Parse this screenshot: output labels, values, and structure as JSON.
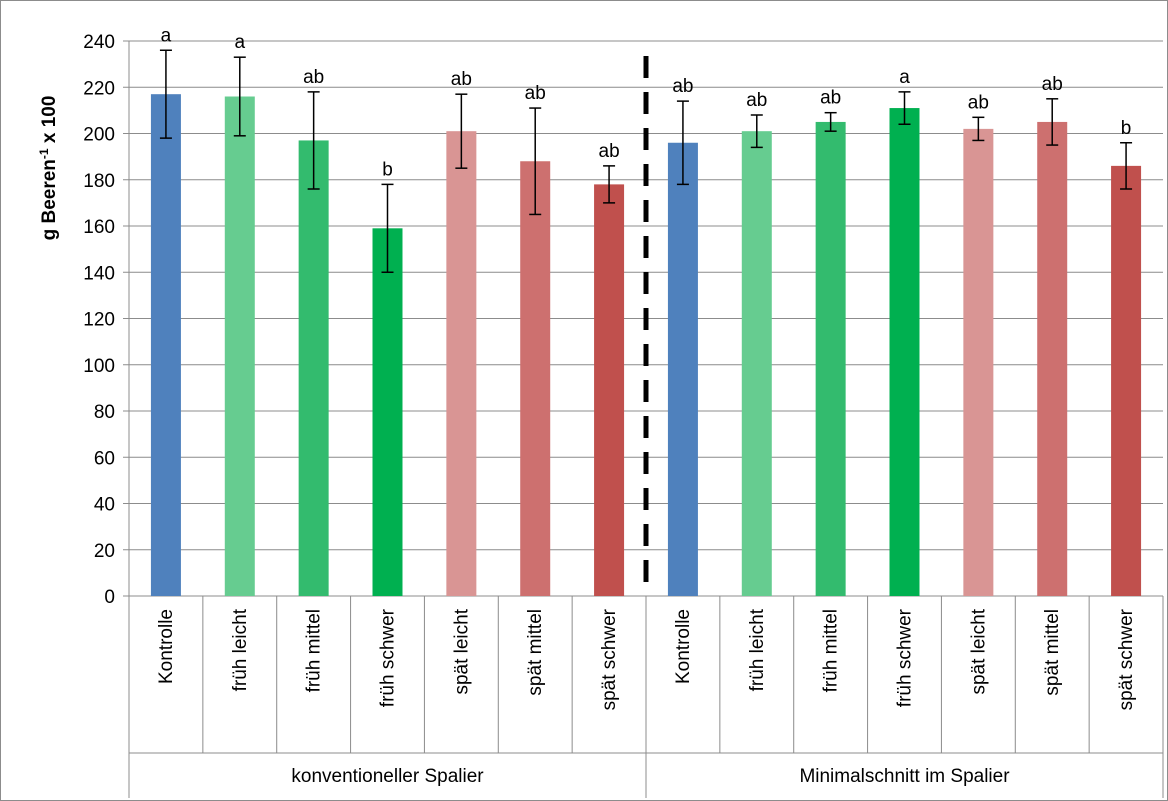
{
  "chart_data": {
    "type": "bar",
    "ylabel": {
      "main": "g Beeren",
      "sup": "-1",
      "rest": " x 100"
    },
    "ylim": [
      0,
      240
    ],
    "yticks": [
      0,
      20,
      40,
      60,
      80,
      100,
      120,
      140,
      160,
      180,
      200,
      220,
      240
    ],
    "grid": true,
    "legend": "none",
    "groups": [
      {
        "label": "konventioneller Spalier",
        "start": 0,
        "count": 7
      },
      {
        "label": "Minimalschnitt im Spalier",
        "start": 7,
        "count": 7
      }
    ],
    "categories": [
      "Kontrolle",
      "früh leicht",
      "früh mittel",
      "früh schwer",
      "spät leicht",
      "spät mittel",
      "spät schwer",
      "Kontrolle",
      "früh leicht",
      "früh mittel",
      "früh schwer",
      "spät leicht",
      "spät mittel",
      "spät schwer"
    ],
    "values": [
      217,
      216,
      197,
      159,
      201,
      188,
      178,
      196,
      201,
      205,
      211,
      202,
      205,
      186
    ],
    "error": [
      19,
      17,
      21,
      19,
      16,
      23,
      8,
      18,
      7,
      4,
      7,
      5,
      10,
      10
    ],
    "significance": [
      "a",
      "a",
      "ab",
      "b",
      "ab",
      "ab",
      "ab",
      "ab",
      "ab",
      "ab",
      "a",
      "ab",
      "ab",
      "b"
    ],
    "colors": [
      "#4f81bd",
      "#66cc90",
      "#33bb6e",
      "#00b050",
      "#d99594",
      "#cd706f",
      "#c0504d",
      "#4f81bd",
      "#66cc90",
      "#33bb6e",
      "#00b050",
      "#d99594",
      "#cd706f",
      "#c0504d"
    ],
    "separator": {
      "style": "dashed",
      "after_index": 6
    }
  }
}
